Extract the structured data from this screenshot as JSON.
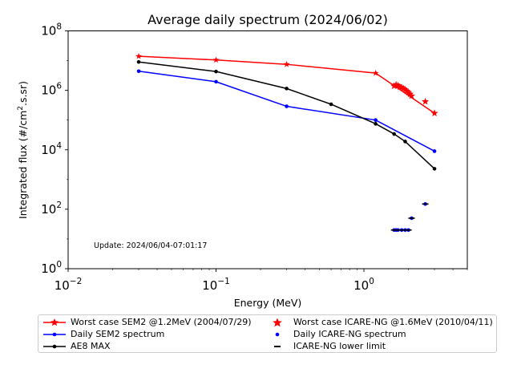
{
  "chart_data": {
    "type": "line",
    "title": "Average daily spectrum (2024/06/02)",
    "xlabel": "Energy (MeV)",
    "ylabel_main": "Integrated flux (#/cm",
    "ylabel_sup": "2",
    "ylabel_tail": ".s.sr)",
    "xscale": "log",
    "yscale": "log",
    "xlim": [
      0.01,
      5
    ],
    "ylim": [
      1,
      100000000
    ],
    "x_ticks": [
      {
        "value": 0.01,
        "base": "10",
        "exp": "−2"
      },
      {
        "value": 0.1,
        "base": "10",
        "exp": "−1"
      },
      {
        "value": 1,
        "base": "10",
        "exp": "0"
      }
    ],
    "y_ticks": [
      {
        "value": 1,
        "base": "10",
        "exp": "0"
      },
      {
        "value": 100,
        "base": "10",
        "exp": "2"
      },
      {
        "value": 10000,
        "base": "10",
        "exp": "4"
      },
      {
        "value": 1000000,
        "base": "10",
        "exp": "6"
      },
      {
        "value": 100000000,
        "base": "10",
        "exp": "8"
      }
    ],
    "annotation": "Update: 2024/06/04-07:01:17",
    "series": [
      {
        "name": "Worst case SEM2 @1.2MeV (2004/07/29)",
        "style": "line-star",
        "color": "#ff0000",
        "x": [
          0.03,
          0.1,
          0.3,
          1.2,
          3.0
        ],
        "y": [
          14000000,
          10500000,
          7500000,
          3800000,
          170000
        ]
      },
      {
        "name": "Daily SEM2 spectrum",
        "style": "line-dot",
        "color": "#0000ff",
        "x": [
          0.03,
          0.1,
          0.3,
          1.2,
          3.0
        ],
        "y": [
          4400000,
          1950000,
          290000,
          100000,
          9000
        ]
      },
      {
        "name": "AE8 MAX",
        "style": "line-dot",
        "color": "#000000",
        "x": [
          0.03,
          0.1,
          0.3,
          0.6,
          1.2,
          1.6,
          1.9,
          3.0
        ],
        "y": [
          9000000,
          4300000,
          1150000,
          340000,
          75000,
          34000,
          19000,
          2300
        ]
      },
      {
        "name": "Worst case ICARE-NG @1.6MeV (2010/04/11)",
        "style": "star",
        "color": "#ff0000",
        "x": [
          1.6,
          1.65,
          1.7,
          1.75,
          1.8,
          1.85,
          1.9,
          1.95,
          2.0,
          2.05,
          2.1,
          2.6,
          3.0
        ],
        "y": [
          1400000,
          1550000,
          1450000,
          1300000,
          1250000,
          1150000,
          1050000,
          950000,
          850000,
          750000,
          650000,
          420000,
          170000
        ]
      },
      {
        "name": "Daily ICARE-NG spectrum",
        "style": "dot",
        "color": "#0000ff",
        "x": [
          1.6,
          1.65,
          1.7,
          1.8,
          1.9,
          2.0,
          2.1,
          2.6
        ],
        "y": [
          20,
          20,
          20,
          20,
          20,
          20,
          50,
          150
        ]
      },
      {
        "name": "ICARE-NG lower limit",
        "style": "dash",
        "color": "#000000",
        "x": [
          1.6,
          1.65,
          1.7,
          1.8,
          1.9,
          2.0,
          2.1,
          2.6
        ],
        "y": [
          20,
          20,
          20,
          20,
          20,
          20,
          50,
          150
        ]
      }
    ],
    "legend": {
      "placement": "below",
      "columns": 2
    }
  }
}
